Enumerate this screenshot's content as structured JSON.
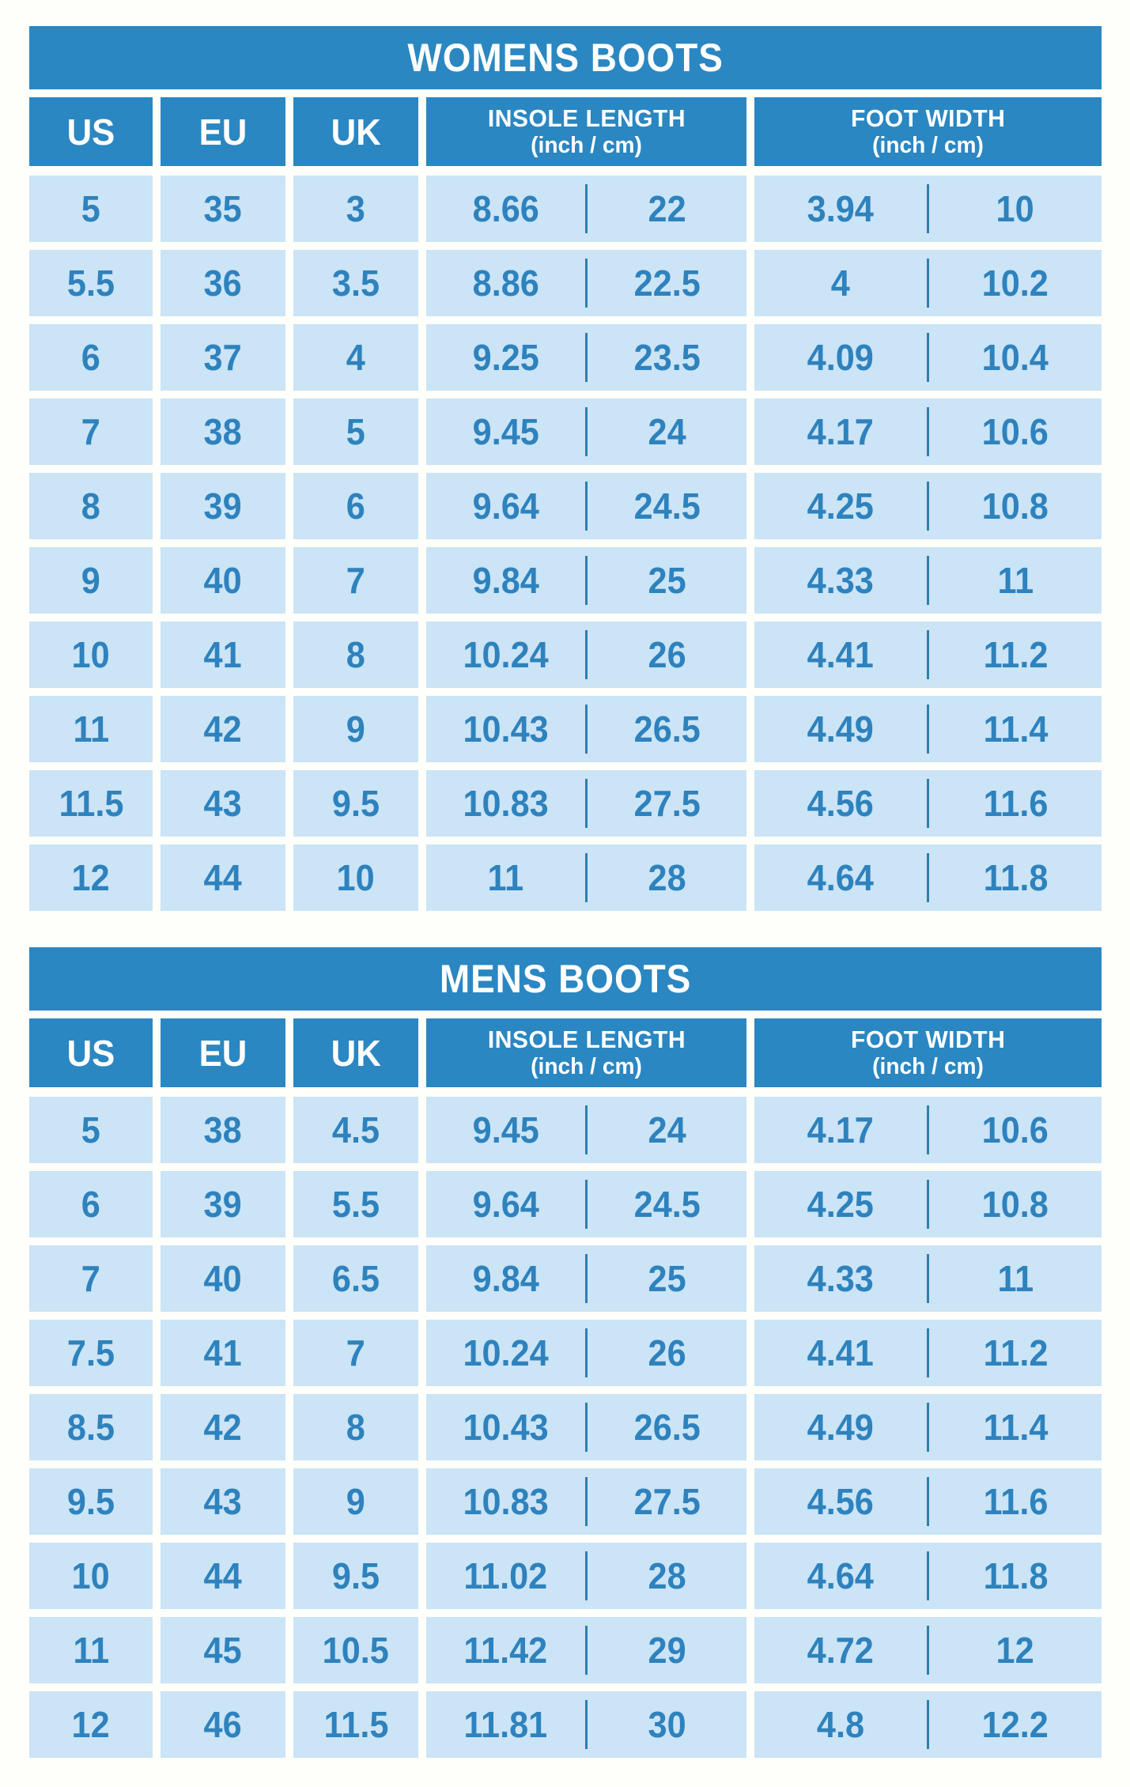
{
  "colors": {
    "header_blue": "#2a87c2",
    "row_light_blue": "#cbe4f6",
    "value_text_blue": "#2e82bd",
    "divider_blue": "#2f7fae",
    "title_text": "#ffffff",
    "background": "#fefefb"
  },
  "chart_data": [
    {
      "type": "table",
      "title": "WOMENS BOOTS",
      "header": {
        "us": "US",
        "eu": "EU",
        "uk": "UK",
        "insole_line1": "INSOLE LENGTH",
        "insole_line2": "(inch / cm)",
        "width_line1": "FOOT WIDTH",
        "width_line2": "(inch / cm)"
      },
      "columns": [
        "US",
        "EU",
        "UK",
        "INSOLE LENGTH inch",
        "INSOLE LENGTH cm",
        "FOOT WIDTH inch",
        "FOOT WIDTH cm"
      ],
      "rows": [
        [
          "5",
          "35",
          "3",
          "8.66",
          "22",
          "3.94",
          "10"
        ],
        [
          "5.5",
          "36",
          "3.5",
          "8.86",
          "22.5",
          "4",
          "10.2"
        ],
        [
          "6",
          "37",
          "4",
          "9.25",
          "23.5",
          "4.09",
          "10.4"
        ],
        [
          "7",
          "38",
          "5",
          "9.45",
          "24",
          "4.17",
          "10.6"
        ],
        [
          "8",
          "39",
          "6",
          "9.64",
          "24.5",
          "4.25",
          "10.8"
        ],
        [
          "9",
          "40",
          "7",
          "9.84",
          "25",
          "4.33",
          "11"
        ],
        [
          "10",
          "41",
          "8",
          "10.24",
          "26",
          "4.41",
          "11.2"
        ],
        [
          "11",
          "42",
          "9",
          "10.43",
          "26.5",
          "4.49",
          "11.4"
        ],
        [
          "11.5",
          "43",
          "9.5",
          "10.83",
          "27.5",
          "4.56",
          "11.6"
        ],
        [
          "12",
          "44",
          "10",
          "11",
          "28",
          "4.64",
          "11.8"
        ]
      ]
    },
    {
      "type": "table",
      "title": "MENS BOOTS",
      "header": {
        "us": "US",
        "eu": "EU",
        "uk": "UK",
        "insole_line1": "INSOLE LENGTH",
        "insole_line2": "(inch / cm)",
        "width_line1": "FOOT WIDTH",
        "width_line2": "(inch / cm)"
      },
      "columns": [
        "US",
        "EU",
        "UK",
        "INSOLE LENGTH inch",
        "INSOLE LENGTH cm",
        "FOOT WIDTH inch",
        "FOOT WIDTH cm"
      ],
      "rows": [
        [
          "5",
          "38",
          "4.5",
          "9.45",
          "24",
          "4.17",
          "10.6"
        ],
        [
          "6",
          "39",
          "5.5",
          "9.64",
          "24.5",
          "4.25",
          "10.8"
        ],
        [
          "7",
          "40",
          "6.5",
          "9.84",
          "25",
          "4.33",
          "11"
        ],
        [
          "7.5",
          "41",
          "7",
          "10.24",
          "26",
          "4.41",
          "11.2"
        ],
        [
          "8.5",
          "42",
          "8",
          "10.43",
          "26.5",
          "4.49",
          "11.4"
        ],
        [
          "9.5",
          "43",
          "9",
          "10.83",
          "27.5",
          "4.56",
          "11.6"
        ],
        [
          "10",
          "44",
          "9.5",
          "11.02",
          "28",
          "4.64",
          "11.8"
        ],
        [
          "11",
          "45",
          "10.5",
          "11.42",
          "29",
          "4.72",
          "12"
        ],
        [
          "12",
          "46",
          "11.5",
          "11.81",
          "30",
          "4.8",
          "12.2"
        ]
      ]
    }
  ]
}
